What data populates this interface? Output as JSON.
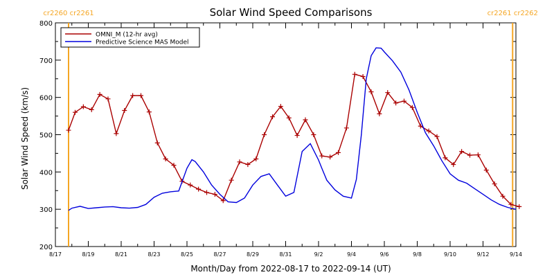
{
  "chart_data": {
    "type": "line",
    "title": "Solar Wind Speed Comparisons",
    "xlabel": "Month/Day from 2022-08-17 to 2022-09-14 (UT)",
    "ylabel": "Solar Wind Speed (km/s)",
    "ylim": [
      200,
      800
    ],
    "xlim": [
      0,
      28
    ],
    "y_ticks": [
      200,
      300,
      400,
      500,
      600,
      700,
      800
    ],
    "x_ticks": [
      {
        "x": 0,
        "label": "8/17"
      },
      {
        "x": 2,
        "label": "8/19"
      },
      {
        "x": 4,
        "label": "8/21"
      },
      {
        "x": 6,
        "label": "8/23"
      },
      {
        "x": 8,
        "label": "8/25"
      },
      {
        "x": 10,
        "label": "8/27"
      },
      {
        "x": 12,
        "label": "8/29"
      },
      {
        "x": 14,
        "label": "8/31"
      },
      {
        "x": 16,
        "label": "9/2"
      },
      {
        "x": 18,
        "label": "9/4"
      },
      {
        "x": 20,
        "label": "9/6"
      },
      {
        "x": 22,
        "label": "9/8"
      },
      {
        "x": 24,
        "label": "9/10"
      },
      {
        "x": 26,
        "label": "9/12"
      },
      {
        "x": 28,
        "label": "9/14"
      }
    ],
    "legend_position": "top-left",
    "series": [
      {
        "name": "OMNI_M (12-hr avg)",
        "color": "#aa0000",
        "marker": "plus",
        "x": [
          0.8,
          1.2,
          1.7,
          2.2,
          2.7,
          3.2,
          3.7,
          4.2,
          4.7,
          5.2,
          5.7,
          6.2,
          6.7,
          7.2,
          7.7,
          8.2,
          8.7,
          9.2,
          9.7,
          10.2,
          10.7,
          11.2,
          11.7,
          12.2,
          12.7,
          13.2,
          13.7,
          14.2,
          14.7,
          15.2,
          15.7,
          16.2,
          16.7,
          17.2,
          17.7,
          18.2,
          18.7,
          19.2,
          19.7,
          20.2,
          20.7,
          21.2,
          21.7,
          22.2,
          22.7,
          23.2,
          23.7,
          24.2,
          24.7,
          25.2,
          25.7,
          26.2,
          26.7,
          27.2,
          27.7,
          28.2
        ],
        "y": [
          512,
          560,
          575,
          567,
          608,
          596,
          503,
          565,
          605,
          605,
          561,
          478,
          435,
          418,
          375,
          365,
          354,
          345,
          340,
          323,
          378,
          427,
          420,
          435,
          500,
          548,
          576,
          545,
          498,
          540,
          500,
          443,
          440,
          452,
          518,
          662,
          656,
          615,
          556,
          613,
          585,
          590,
          573,
          523,
          510,
          495,
          438,
          420,
          455,
          445,
          446,
          405,
          368,
          335,
          313,
          307
        ]
      },
      {
        "name": "Predictive Science MAS Model",
        "color": "#0000dd",
        "marker": "none",
        "x": [
          0.8,
          1.0,
          1.5,
          2.0,
          2.5,
          3.0,
          3.5,
          4.0,
          4.5,
          5.0,
          5.5,
          6.0,
          6.5,
          7.0,
          7.5,
          8.0,
          8.3,
          8.5,
          9.0,
          9.5,
          10.0,
          10.5,
          11.0,
          11.5,
          12.0,
          12.5,
          13.0,
          13.5,
          14.0,
          14.5,
          15.0,
          15.5,
          16.0,
          16.2,
          16.5,
          17.0,
          17.5,
          18.0,
          18.3,
          18.6,
          18.9,
          19.2,
          19.5,
          19.8,
          20.0,
          20.5,
          21.0,
          21.5,
          22.0,
          22.5,
          23.0,
          23.5,
          24.0,
          24.5,
          25.0,
          25.5,
          26.0,
          26.5,
          27.0,
          27.5,
          28.0
        ],
        "y": [
          297,
          303,
          308,
          302,
          304,
          306,
          307,
          304,
          303,
          305,
          313,
          332,
          343,
          347,
          349,
          410,
          433,
          428,
          400,
          365,
          340,
          320,
          318,
          330,
          365,
          388,
          395,
          365,
          335,
          345,
          455,
          476,
          432,
          410,
          378,
          352,
          335,
          330,
          380,
          500,
          650,
          712,
          733,
          732,
          722,
          698,
          668,
          620,
          560,
          505,
          470,
          430,
          395,
          378,
          370,
          355,
          340,
          325,
          313,
          305,
          300
        ]
      }
    ],
    "carrington_markers": [
      {
        "x": 0.8,
        "label": "cr2260 cr2261"
      },
      {
        "x": 27.8,
        "label": "cr2261 cr2262"
      }
    ],
    "marker_color": "#f5a623",
    "grid": false
  }
}
